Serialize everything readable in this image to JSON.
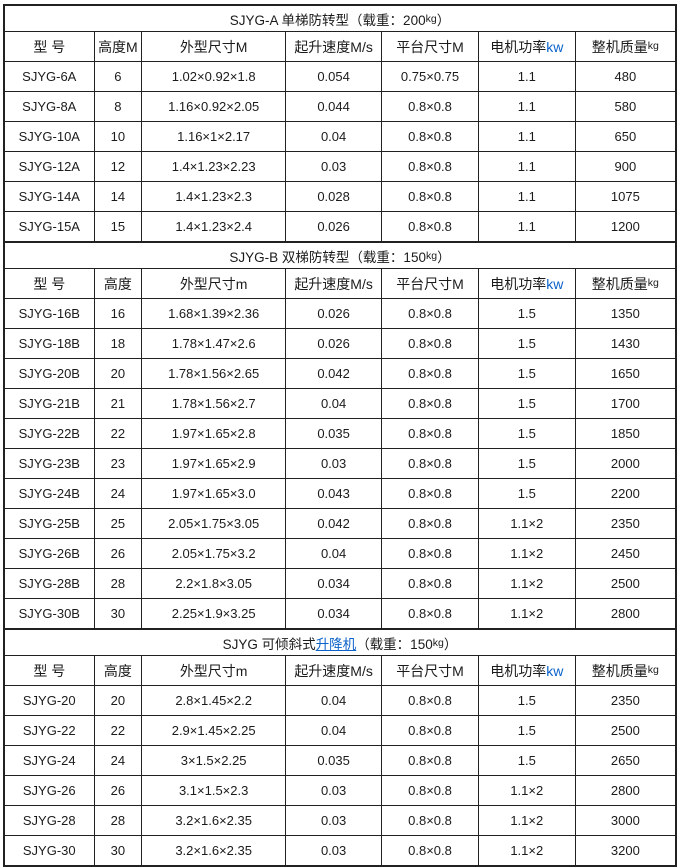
{
  "page": {
    "background": "#ffffff",
    "colors": {
      "border": "#212121",
      "text": "#1b1b1b",
      "link_blue": "#0b62c9",
      "kw_unit_blue": "#0b62c9"
    }
  },
  "sections": [
    {
      "title": {
        "pre": "SJYG-A 单梯防转型（载重：200",
        "weight_unit": "kg",
        "post": "）"
      },
      "columns": [
        {
          "label": "型 号"
        },
        {
          "label": "高度M"
        },
        {
          "label": "外型尺寸M"
        },
        {
          "label": "起升速度M/s"
        },
        {
          "label": "平台尺寸M"
        },
        {
          "label": "电机功率",
          "unit": "kw",
          "unit_style": "kw"
        },
        {
          "label": "整机质量",
          "unit": "kg",
          "unit_style": "kg"
        }
      ],
      "rows": [
        [
          "SJYG-6A",
          "6",
          "1.02×0.92×1.8",
          "0.054",
          "0.75×0.75",
          "1.1",
          "480"
        ],
        [
          "SJYG-8A",
          "8",
          "1.16×0.92×2.05",
          "0.044",
          "0.8×0.8",
          "1.1",
          "580"
        ],
        [
          "SJYG-10A",
          "10",
          "1.16×1×2.17",
          "0.04",
          "0.8×0.8",
          "1.1",
          "650"
        ],
        [
          "SJYG-12A",
          "12",
          "1.4×1.23×2.23",
          "0.03",
          "0.8×0.8",
          "1.1",
          "900"
        ],
        [
          "SJYG-14A",
          "14",
          "1.4×1.23×2.3",
          "0.028",
          "0.8×0.8",
          "1.1",
          "1075"
        ],
        [
          "SJYG-15A",
          "15",
          "1.4×1.23×2.4",
          "0.026",
          "0.8×0.8",
          "1.1",
          "1200"
        ]
      ]
    },
    {
      "title": {
        "pre": "SJYG-B 双梯防转型（载重：150",
        "weight_unit": "kg",
        "post": "）"
      },
      "columns": [
        {
          "label": "型 号"
        },
        {
          "label": "高度"
        },
        {
          "label": "外型尺寸m"
        },
        {
          "label": "起升速度M/s"
        },
        {
          "label": "平台尺寸M"
        },
        {
          "label": "电机功率",
          "unit": "kw",
          "unit_style": "kw"
        },
        {
          "label": "整机质量",
          "unit": "kg",
          "unit_style": "kg"
        }
      ],
      "rows": [
        [
          "SJYG-16B",
          "16",
          "1.68×1.39×2.36",
          "0.026",
          "0.8×0.8",
          "1.5",
          "1350"
        ],
        [
          "SJYG-18B",
          "18",
          "1.78×1.47×2.6",
          "0.026",
          "0.8×0.8",
          "1.5",
          "1430"
        ],
        [
          "SJYG-20B",
          "20",
          "1.78×1.56×2.65",
          "0.042",
          "0.8×0.8",
          "1.5",
          "1650"
        ],
        [
          "SJYG-21B",
          "21",
          "1.78×1.56×2.7",
          "0.04",
          "0.8×0.8",
          "1.5",
          "1700"
        ],
        [
          "SJYG-22B",
          "22",
          "1.97×1.65×2.8",
          "0.035",
          "0.8×0.8",
          "1.5",
          "1850"
        ],
        [
          "SJYG-23B",
          "23",
          "1.97×1.65×2.9",
          "0.03",
          "0.8×0.8",
          "1.5",
          "2000"
        ],
        [
          "SJYG-24B",
          "24",
          "1.97×1.65×3.0",
          "0.043",
          "0.8×0.8",
          "1.5",
          "2200"
        ],
        [
          "SJYG-25B",
          "25",
          "2.05×1.75×3.05",
          "0.042",
          "0.8×0.8",
          "1.1×2",
          "2350"
        ],
        [
          "SJYG-26B",
          "26",
          "2.05×1.75×3.2",
          "0.04",
          "0.8×0.8",
          "1.1×2",
          "2450"
        ],
        [
          "SJYG-28B",
          "28",
          "2.2×1.8×3.05",
          "0.034",
          "0.8×0.8",
          "1.1×2",
          "2500"
        ],
        [
          "SJYG-30B",
          "30",
          "2.25×1.9×3.25",
          "0.034",
          "0.8×0.8",
          "1.1×2",
          "2800"
        ]
      ]
    },
    {
      "title": {
        "pre": "SJYG 可倾斜式",
        "link": "升降机",
        "mid": "（载重：150",
        "weight_unit": "kg",
        "post": "）"
      },
      "columns": [
        {
          "label": "型 号"
        },
        {
          "label": "高度"
        },
        {
          "label": "外型尺寸m"
        },
        {
          "label": "起升速度M/s"
        },
        {
          "label": "平台尺寸M"
        },
        {
          "label": "电机功率",
          "unit": "kw",
          "unit_style": "kw"
        },
        {
          "label": "整机质量",
          "unit": "kg",
          "unit_style": "kg"
        }
      ],
      "rows": [
        [
          "SJYG-20",
          "20",
          "2.8×1.45×2.2",
          "0.04",
          "0.8×0.8",
          "1.5",
          "2350"
        ],
        [
          "SJYG-22",
          "22",
          "2.9×1.45×2.25",
          "0.04",
          "0.8×0.8",
          "1.5",
          "2500"
        ],
        [
          "SJYG-24",
          "24",
          "3×1.5×2.25",
          "0.035",
          "0.8×0.8",
          "1.5",
          "2650"
        ],
        [
          "SJYG-26",
          "26",
          "3.1×1.5×2.3",
          "0.03",
          "0.8×0.8",
          "1.1×2",
          "2800"
        ],
        [
          "SJYG-28",
          "28",
          "3.2×1.6×2.35",
          "0.03",
          "0.8×0.8",
          "1.1×2",
          "3000"
        ],
        [
          "SJYG-30",
          "30",
          "3.2×1.6×2.35",
          "0.03",
          "0.8×0.8",
          "1.1×2",
          "3200"
        ]
      ]
    }
  ]
}
